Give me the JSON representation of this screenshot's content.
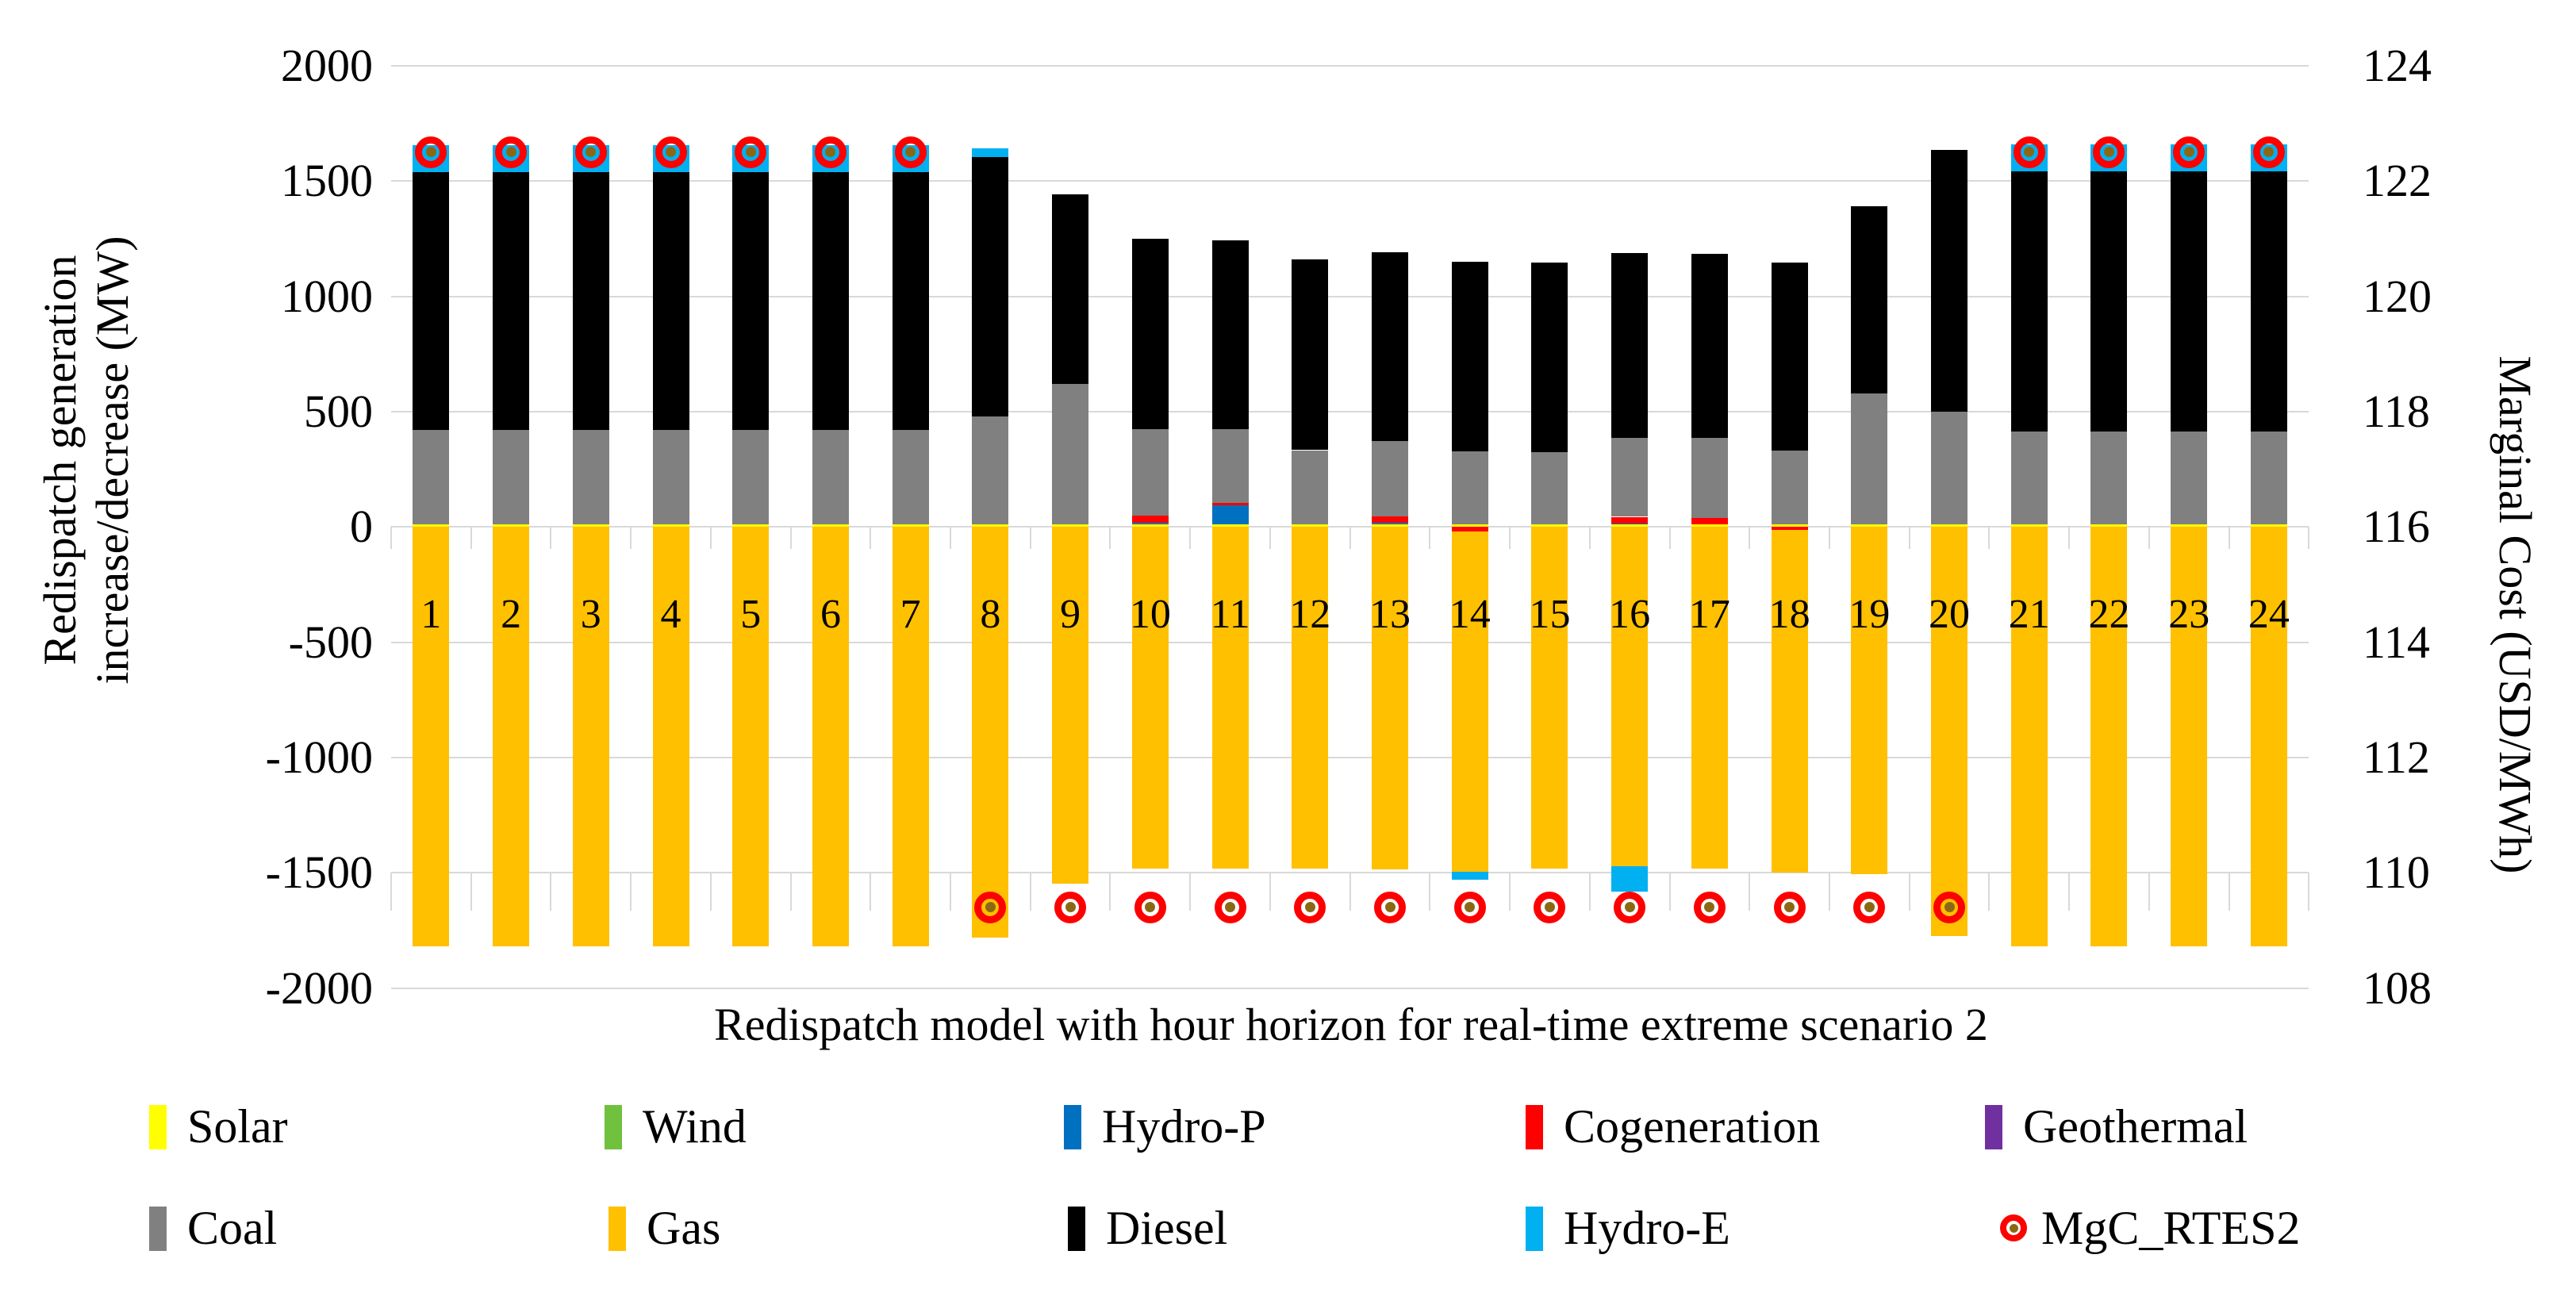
{
  "axes": {
    "left_title_line1": "Redispatch generation",
    "left_title_line2": "increase/decrease (MW)",
    "right_title": "Marginal Cost (USD/MWh)",
    "x_title": "Redispatch model with hour horizon for real-time extreme scenario 2",
    "left_ticks": [
      "2000",
      "1500",
      "1000",
      "500",
      "0",
      "-500",
      "-1000",
      "-1500",
      "-2000"
    ],
    "right_ticks": [
      "124",
      "122",
      "120",
      "118",
      "116",
      "114",
      "112",
      "110",
      "108"
    ],
    "left_range": [
      -2000,
      2000
    ],
    "right_range": [
      108,
      124
    ]
  },
  "colors": {
    "solar": "#ffff00",
    "wind": "#6fc13e",
    "hydro_p": "#0070c0",
    "cogeneration": "#ff0000",
    "geothermal": "#7030a0",
    "coal": "#808080",
    "gas": "#ffc000",
    "diesel": "#000000",
    "hydro_e": "#00b0f0",
    "mgc_ring": "#ff0000",
    "mgc_center": "#8b6914",
    "gridline": "#d9d9d9"
  },
  "legend": {
    "row1": [
      {
        "label": "Solar",
        "color": "#ffff00",
        "x": 188
      },
      {
        "label": "Wind",
        "color": "#6fc13e",
        "x": 762
      },
      {
        "label": "Hydro-P",
        "color": "#0070c0",
        "x": 1341
      },
      {
        "label": "Cogeneration",
        "color": "#ff0000",
        "x": 1923
      },
      {
        "label": "Geothermal",
        "color": "#7030a0",
        "x": 2502
      }
    ],
    "row2": [
      {
        "label": "Coal",
        "color": "#808080",
        "x": 188
      },
      {
        "label": "Gas",
        "color": "#ffc000",
        "x": 767
      },
      {
        "label": "Diesel",
        "color": "#000000",
        "x": 1346
      },
      {
        "label": "Hydro-E",
        "color": "#00b0f0",
        "x": 1923
      },
      {
        "label": "MgC_RTES2",
        "color": "#ff0000",
        "marker": true,
        "x": 2525
      }
    ]
  },
  "chart_data": {
    "type": "bar",
    "subtype": "stacked-with-scatter-overlay",
    "title": "",
    "xlabel": "Redispatch model with hour horizon for real-time extreme scenario 2",
    "ylabel_left": "Redispatch generation increase/decrease (MW)",
    "ylabel_right": "Marginal Cost (USD/MWh)",
    "ylim_left": [
      -2000,
      2000
    ],
    "ylim_right": [
      108,
      124
    ],
    "grid": true,
    "legend_position": "bottom",
    "categories": [
      1,
      2,
      3,
      4,
      5,
      6,
      7,
      8,
      9,
      10,
      11,
      12,
      13,
      14,
      15,
      16,
      17,
      18,
      19,
      20,
      21,
      22,
      23,
      24
    ],
    "series": [
      {
        "name": "Solar",
        "id": "solar",
        "values": [
          10,
          10,
          10,
          10,
          10,
          10,
          10,
          10,
          10,
          10,
          10,
          10,
          10,
          10,
          10,
          10,
          10,
          10,
          10,
          10,
          10,
          10,
          10,
          10
        ]
      },
      {
        "name": "Wind",
        "id": "wind",
        "values": [
          0,
          0,
          0,
          0,
          0,
          0,
          0,
          0,
          0,
          0,
          0,
          0,
          0,
          0,
          0,
          0,
          0,
          0,
          0,
          0,
          0,
          0,
          0,
          0
        ]
      },
      {
        "name": "Hydro-P",
        "id": "hydro_p",
        "values": [
          0,
          0,
          0,
          0,
          0,
          0,
          0,
          0,
          0,
          8,
          85,
          0,
          8,
          0,
          0,
          6,
          0,
          0,
          0,
          0,
          0,
          0,
          0,
          0
        ]
      },
      {
        "name": "Cogeneration",
        "id": "cogeneration",
        "values": [
          0,
          0,
          0,
          0,
          0,
          0,
          0,
          0,
          0,
          30,
          8,
          0,
          28,
          0,
          0,
          28,
          30,
          0,
          0,
          0,
          0,
          0,
          0,
          0
        ]
      },
      {
        "name": "Cogeneration (negative)",
        "id": "cogeneration_neg",
        "values": [
          0,
          0,
          0,
          0,
          0,
          0,
          0,
          0,
          0,
          0,
          0,
          0,
          0,
          -20,
          0,
          0,
          0,
          -12,
          0,
          0,
          0,
          0,
          0,
          0
        ]
      },
      {
        "name": "Geothermal",
        "id": "geothermal",
        "values": [
          0,
          0,
          0,
          0,
          0,
          0,
          0,
          0,
          0,
          0,
          0,
          0,
          0,
          0,
          0,
          0,
          0,
          0,
          0,
          0,
          0,
          0,
          0,
          0
        ]
      },
      {
        "name": "Coal",
        "id": "coal",
        "values": [
          410,
          410,
          410,
          410,
          410,
          410,
          410,
          470,
          611,
          377,
          320,
          323,
          327,
          318,
          315,
          341,
          345,
          320,
          570,
          490,
          403,
          403,
          403,
          403
        ]
      },
      {
        "name": "Gas",
        "id": "gas",
        "values": [
          -1820,
          -1820,
          -1820,
          -1820,
          -1820,
          -1820,
          -1820,
          -1780,
          -1548,
          -1480,
          -1480,
          -1480,
          -1485,
          -1477,
          -1480,
          -1471,
          -1480,
          -1488,
          -1506,
          -1775,
          -1820,
          -1820,
          -1820,
          -1820
        ]
      },
      {
        "name": "Diesel",
        "id": "diesel",
        "values": [
          1120,
          1120,
          1120,
          1120,
          1120,
          1120,
          1120,
          1124,
          822,
          824,
          821,
          828,
          817,
          821,
          822,
          803,
          801,
          817,
          810,
          1135,
          1130,
          1130,
          1130,
          1130
        ]
      },
      {
        "name": "Hydro-E",
        "id": "hydro_e",
        "values": [
          115,
          115,
          115,
          115,
          115,
          115,
          115,
          39,
          0,
          0,
          0,
          0,
          0,
          0,
          0,
          0,
          0,
          0,
          0,
          0,
          116,
          116,
          116,
          116
        ]
      },
      {
        "name": "Hydro-E (negative)",
        "id": "hydro_e_neg",
        "values": [
          0,
          0,
          0,
          0,
          0,
          0,
          0,
          0,
          0,
          0,
          0,
          0,
          0,
          -33,
          0,
          -109,
          0,
          0,
          0,
          0,
          0,
          0,
          0,
          0
        ]
      },
      {
        "name": "MgC_RTES2",
        "id": "mgc_rtes2",
        "axis": "right",
        "marker": "red-ring-circle",
        "values": [
          122.5,
          122.5,
          122.5,
          122.5,
          122.5,
          122.5,
          122.5,
          109.4,
          109.4,
          109.4,
          109.4,
          109.4,
          109.4,
          109.4,
          109.4,
          109.4,
          109.4,
          109.4,
          109.4,
          109.4,
          122.5,
          122.5,
          122.5,
          122.5
        ]
      }
    ]
  }
}
